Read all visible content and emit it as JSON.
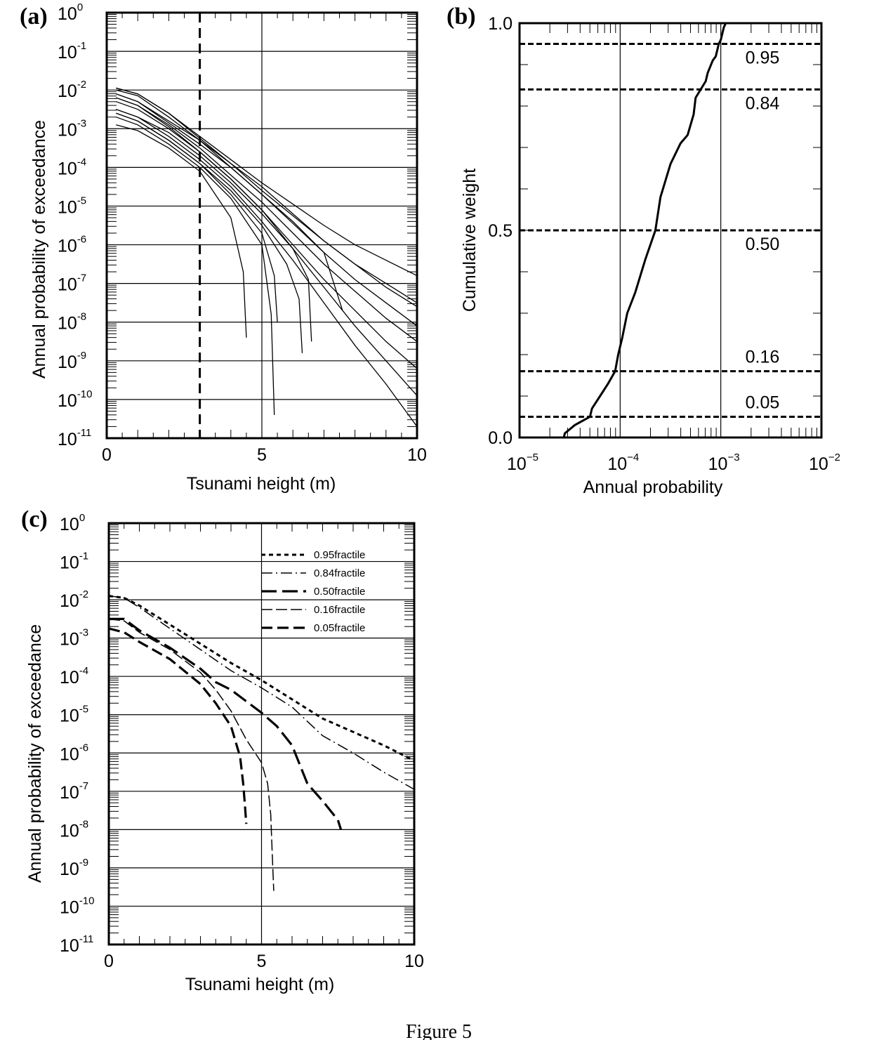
{
  "figure": {
    "caption": "Figure 5"
  },
  "chart_data": [
    {
      "panel": "(a)",
      "type": "line",
      "xlabel": "Tsunami height (m)",
      "ylabel": "Annual probability of exceedance",
      "xlim": [
        0,
        10
      ],
      "ylim_log10": [
        -11,
        0
      ],
      "y_scale": "log",
      "x_ticks": [
        0,
        5,
        10
      ],
      "y_tick_exponents": [
        "0",
        "-1",
        "-2",
        "-3",
        "-4",
        "-5",
        "-6",
        "-7",
        "-8",
        "-9",
        "-10",
        "-11"
      ],
      "grid": true,
      "reference_line_x": 3,
      "series_log10": [
        {
          "x": [
            0.3,
            1,
            2,
            3,
            4,
            5,
            6,
            7,
            8,
            9,
            10
          ],
          "y": [
            -1.95,
            -2.1,
            -2.6,
            -3.2,
            -3.8,
            -4.4,
            -4.95,
            -5.5,
            -6.0,
            -6.4,
            -6.8
          ]
        },
        {
          "x": [
            0.3,
            1,
            2,
            3,
            4,
            5,
            6,
            7,
            8,
            9,
            10
          ],
          "y": [
            -1.95,
            -2.1,
            -2.6,
            -3.25,
            -3.9,
            -4.6,
            -5.25,
            -5.9,
            -6.5,
            -7.0,
            -7.5
          ]
        },
        {
          "x": [
            0.3,
            1,
            2,
            3,
            4,
            5,
            6,
            7,
            8,
            9,
            10
          ],
          "y": [
            -2.1,
            -2.3,
            -2.8,
            -3.3,
            -3.9,
            -4.5,
            -5.2,
            -5.9,
            -6.5,
            -7.1,
            -7.6
          ]
        },
        {
          "x": [
            0.3,
            1,
            2,
            3,
            4,
            5,
            6,
            7,
            8,
            9,
            10
          ],
          "y": [
            -2.1,
            -2.3,
            -2.85,
            -3.4,
            -4.0,
            -4.7,
            -5.45,
            -6.2,
            -6.9,
            -7.5,
            -8.1
          ]
        },
        {
          "x": [
            0.3,
            1,
            2,
            3,
            4,
            5,
            6,
            7,
            8,
            9,
            10
          ],
          "y": [
            -2.2,
            -2.4,
            -2.9,
            -3.5,
            -4.2,
            -4.9,
            -5.7,
            -6.5,
            -7.2,
            -7.9,
            -8.5
          ]
        },
        {
          "x": [
            0.3,
            1,
            2,
            3,
            4,
            5,
            6,
            7,
            8,
            9,
            10
          ],
          "y": [
            -2.2,
            -2.4,
            -2.95,
            -3.6,
            -4.3,
            -5.1,
            -6.0,
            -6.9,
            -7.7,
            -8.5,
            -9.2
          ]
        },
        {
          "x": [
            0.3,
            1,
            2,
            3,
            4,
            5,
            6,
            7,
            8,
            9,
            10
          ],
          "y": [
            -2.5,
            -2.7,
            -3.1,
            -3.7,
            -4.4,
            -5.2,
            -6.1,
            -7.1,
            -8.1,
            -9.0,
            -9.9
          ]
        },
        {
          "x": [
            0.3,
            1,
            2,
            3,
            4,
            5,
            6,
            7,
            8,
            9,
            10
          ],
          "y": [
            -2.5,
            -2.7,
            -3.2,
            -3.8,
            -4.5,
            -5.4,
            -6.4,
            -7.5,
            -8.6,
            -9.6,
            -10.7
          ]
        },
        {
          "x": [
            0.3,
            1,
            2,
            3,
            4,
            5,
            6,
            7,
            7.6
          ],
          "y": [
            -2.0,
            -2.15,
            -2.7,
            -3.3,
            -4.0,
            -4.7,
            -5.4,
            -6.2,
            -7.7
          ]
        },
        {
          "x": [
            0.3,
            1,
            2,
            3,
            4,
            5,
            6,
            6.5,
            6.6
          ],
          "y": [
            -2.3,
            -2.5,
            -3.0,
            -3.6,
            -4.3,
            -5.1,
            -6.1,
            -6.9,
            -8.5
          ]
        },
        {
          "x": [
            0.3,
            1,
            2,
            3,
            4,
            5,
            5.8,
            6.2,
            6.3
          ],
          "y": [
            -2.6,
            -2.8,
            -3.3,
            -3.9,
            -4.6,
            -5.5,
            -6.5,
            -7.4,
            -8.8
          ]
        },
        {
          "x": [
            0.3,
            1,
            2,
            3,
            4,
            5,
            5.4,
            5.5
          ],
          "y": [
            -2.6,
            -2.8,
            -3.3,
            -3.9,
            -4.7,
            -5.7,
            -6.8,
            -8.0
          ]
        },
        {
          "x": [
            0.3,
            1,
            2,
            3,
            4,
            5,
            5.3,
            5.4
          ],
          "y": [
            -2.7,
            -2.9,
            -3.4,
            -4.0,
            -4.8,
            -6.0,
            -7.8,
            -10.4
          ]
        },
        {
          "x": [
            0.3,
            1,
            2,
            3,
            4,
            4.4,
            4.5
          ],
          "y": [
            -2.9,
            -3.05,
            -3.5,
            -4.1,
            -5.3,
            -6.7,
            -8.4
          ]
        }
      ]
    },
    {
      "panel": "(b)",
      "type": "line",
      "xlabel": "Annual probability",
      "ylabel": "Cumulative weight",
      "x_scale": "log",
      "xlim_log10": [
        -5,
        -2
      ],
      "x_tick_exponents": [
        "−5",
        "−4",
        "−3",
        "−2"
      ],
      "ylim": [
        0,
        1
      ],
      "y_ticks": [
        "0.0",
        "0.5",
        "1.0"
      ],
      "reference_lines": [
        {
          "y": 0.95,
          "label": "0.95"
        },
        {
          "y": 0.84,
          "label": "0.84"
        },
        {
          "y": 0.5,
          "label": "0.50"
        },
        {
          "y": 0.16,
          "label": "0.16"
        },
        {
          "y": 0.05,
          "label": "0.05"
        }
      ],
      "cdf_log10_x": [
        -4.56,
        -4.55,
        -4.45,
        -4.3,
        -4.28,
        -4.2,
        -4.12,
        -4.05,
        -4.02,
        -3.98,
        -3.93,
        -3.85,
        -3.75,
        -3.65,
        -3.6,
        -3.5,
        -3.4,
        -3.33,
        -3.27,
        -3.25,
        -3.2,
        -3.15,
        -3.13,
        -3.08,
        -3.05,
        -3.02,
        -3.0,
        -2.97,
        -2.95
      ],
      "cdf_y": [
        0.0,
        0.01,
        0.03,
        0.05,
        0.07,
        0.1,
        0.13,
        0.16,
        0.2,
        0.24,
        0.3,
        0.35,
        0.43,
        0.5,
        0.58,
        0.66,
        0.71,
        0.73,
        0.78,
        0.82,
        0.84,
        0.86,
        0.88,
        0.91,
        0.92,
        0.95,
        0.96,
        0.99,
        1.0
      ]
    },
    {
      "panel": "(c)",
      "type": "line",
      "xlabel": "Tsunami height (m)",
      "ylabel": "Annual probability of exceedance",
      "xlim": [
        0,
        10
      ],
      "ylim_log10": [
        -11,
        0
      ],
      "y_scale": "log",
      "x_ticks": [
        0,
        5,
        10
      ],
      "y_tick_exponents": [
        "0",
        "-1",
        "-2",
        "-3",
        "-4",
        "-5",
        "-6",
        "-7",
        "-8",
        "-9",
        "-10",
        "-11"
      ],
      "grid": true,
      "series": [
        {
          "name": "0.95fractile",
          "dash": "6 5",
          "width": 3,
          "x": [
            0,
            0.5,
            1,
            2,
            3,
            4,
            5,
            6,
            7,
            8,
            9,
            10
          ],
          "y_log10": [
            -1.9,
            -1.95,
            -2.15,
            -2.65,
            -3.15,
            -3.65,
            -4.1,
            -4.6,
            -5.1,
            -5.45,
            -5.8,
            -6.2
          ]
        },
        {
          "name": "0.84fractile",
          "dash": "16 5 2 5",
          "width": 1.5,
          "x": [
            0,
            0.5,
            1,
            2,
            3,
            4,
            5,
            6,
            7,
            8,
            9,
            10
          ],
          "y_log10": [
            -1.9,
            -1.95,
            -2.2,
            -2.75,
            -3.3,
            -3.85,
            -4.3,
            -4.8,
            -5.55,
            -6.0,
            -6.5,
            -6.95
          ]
        },
        {
          "name": "0.50fractile",
          "dash": "22 8",
          "width": 3.2,
          "x": [
            0,
            0.5,
            1,
            2,
            3,
            3.5,
            4,
            5,
            5.5,
            6,
            6.2,
            6.5,
            7,
            7.5,
            7.6
          ],
          "y_log10": [
            -2.5,
            -2.5,
            -2.8,
            -3.25,
            -3.8,
            -4.15,
            -4.35,
            -4.95,
            -5.3,
            -5.8,
            -6.2,
            -6.8,
            -7.25,
            -7.75,
            -8.0
          ]
        },
        {
          "name": "0.16fractile",
          "dash": "16 5",
          "width": 1.5,
          "x": [
            0,
            0.5,
            1,
            2,
            3,
            3.5,
            4,
            4.5,
            5,
            5.2,
            5.3,
            5.35,
            5.4
          ],
          "y_log10": [
            -2.5,
            -2.55,
            -2.85,
            -3.3,
            -3.9,
            -4.35,
            -4.9,
            -5.65,
            -6.25,
            -6.8,
            -7.6,
            -8.6,
            -9.6
          ]
        },
        {
          "name": "0.05fractile",
          "dash": "16 7",
          "width": 3.2,
          "x": [
            0,
            0.5,
            1,
            2,
            3,
            3.5,
            4,
            4.3,
            4.4,
            4.45,
            4.5
          ],
          "y_log10": [
            -2.75,
            -2.85,
            -3.1,
            -3.55,
            -4.2,
            -4.7,
            -5.3,
            -6.1,
            -6.8,
            -7.3,
            -7.85
          ]
        }
      ]
    }
  ]
}
